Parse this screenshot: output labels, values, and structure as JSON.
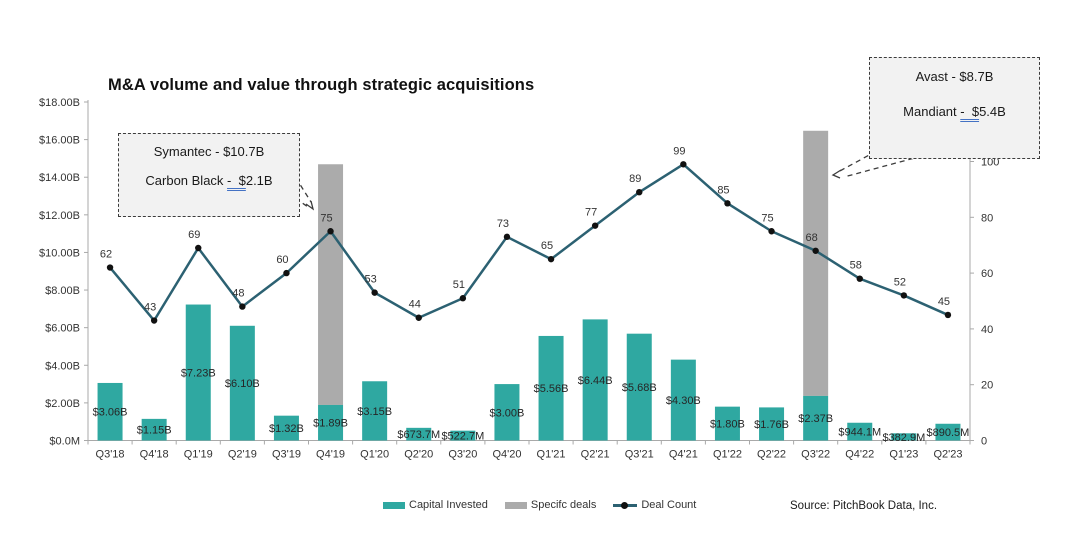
{
  "title": "M&A volume and value through strategic acquisitions",
  "source": "Source: PitchBook Data, Inc.",
  "legend": {
    "items": [
      {
        "label": "Capital Invested",
        "swatch": "bar",
        "color": "#2FA8A1"
      },
      {
        "label": "Specifc deals",
        "swatch": "bar",
        "color": "#ABABAB"
      },
      {
        "label": "Deal Count",
        "swatch": "line-dot",
        "color": "#2C6172"
      }
    ]
  },
  "callouts": [
    {
      "id": "symantec",
      "line1": "Symantec - $10.7B",
      "line2_prefix": "Carbon Black ",
      "line2_underlined": "-  $",
      "line2_suffix": "2.1B"
    },
    {
      "id": "avast",
      "line1": "Avast - $8.7B",
      "line2_prefix": "Mandiant ",
      "line2_underlined": "-  $",
      "line2_suffix": "5.4B"
    }
  ],
  "chart_data": {
    "type": "combo-bar-line",
    "title": "M&A volume and value through strategic acquisitions",
    "categories": [
      "Q3'18",
      "Q4'18",
      "Q1'19",
      "Q2'19",
      "Q3'19",
      "Q4'19",
      "Q1'20",
      "Q2'20",
      "Q3'20",
      "Q4'20",
      "Q1'21",
      "Q2'21",
      "Q3'21",
      "Q4'21",
      "Q1'22",
      "Q2'22",
      "Q3'22",
      "Q4'22",
      "Q1'23",
      "Q2'23"
    ],
    "series": [
      {
        "name": "Capital Invested",
        "type": "bar",
        "color": "#2FA8A1",
        "unit": "USD billions",
        "values": [
          3.06,
          1.15,
          7.23,
          6.1,
          1.32,
          1.89,
          3.15,
          0.6737,
          0.5227,
          3.0,
          5.56,
          6.44,
          5.68,
          4.3,
          1.8,
          1.76,
          2.37,
          0.9441,
          0.3829,
          0.8905
        ],
        "labels": [
          "$3.06B",
          "$1.15B",
          "$7.23B",
          "$6.10B",
          "$1.32B",
          "$1.89B",
          "$3.15B",
          "$673.7M",
          "$522.7M",
          "$3.00B",
          "$5.56B",
          "$6.44B",
          "$5.68B",
          "$4.30B",
          "$1.80B",
          "$1.76B",
          "$2.37B",
          "$944.1M",
          "$382.9M",
          "$890.5M"
        ]
      },
      {
        "name": "Specifc deals",
        "type": "bar",
        "stacked_on": "Capital Invested",
        "color": "#ABABAB",
        "unit": "USD billions",
        "values": [
          0,
          0,
          0,
          0,
          0,
          12.8,
          0,
          0,
          0,
          0,
          0,
          0,
          0,
          0,
          0,
          0,
          14.1,
          0,
          0,
          0
        ]
      },
      {
        "name": "Deal Count",
        "type": "line",
        "axis": "right",
        "color": "#2C6172",
        "marker_color": "#111111",
        "values": [
          62,
          43,
          69,
          48,
          60,
          75,
          53,
          44,
          51,
          73,
          65,
          77,
          89,
          99,
          85,
          75,
          68,
          58,
          52,
          45
        ]
      }
    ],
    "left_axis": {
      "tick_labels": [
        "$18.00B",
        "$16.00B",
        "$14.00B",
        "$12.00B",
        "$10.00B",
        "$8.00B",
        "$6.00B",
        "$4.00B",
        "$2.00B",
        "$0.0M"
      ],
      "tick_values": [
        18,
        16,
        14,
        12,
        10,
        8,
        6,
        4,
        2,
        0
      ],
      "min": 0,
      "max": 18
    },
    "right_axis": {
      "tick_labels": [
        "100",
        "80",
        "60",
        "40",
        "20",
        "0"
      ],
      "tick_values": [
        100,
        80,
        60,
        40,
        20,
        0
      ],
      "min": 0,
      "max": 100
    },
    "grid": false,
    "legend_position": "bottom"
  }
}
